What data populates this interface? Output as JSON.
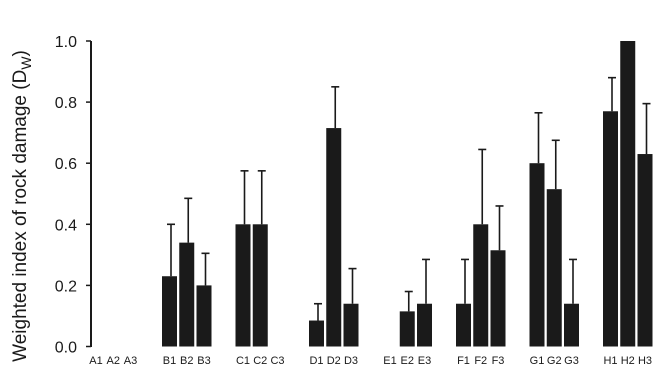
{
  "chart_data": {
    "type": "bar",
    "title": "",
    "xlabel": "",
    "ylabel": "Weighted index of rock damage (D",
    "ylabel_subscript": "W",
    "ylim": [
      0,
      1.0
    ],
    "yticks": [
      "0.0",
      "0.2",
      "0.4",
      "0.6",
      "0.8",
      "1.0"
    ],
    "grid": false,
    "bar_color": "#1a1a1a",
    "groups": [
      {
        "name": "A",
        "categories": [
          "A1",
          "A2",
          "A3"
        ],
        "values": [
          0,
          0,
          0
        ],
        "errors": [
          0,
          0,
          0
        ]
      },
      {
        "name": "B",
        "categories": [
          "B1",
          "B2",
          "B3"
        ],
        "values": [
          0.23,
          0.34,
          0.2
        ],
        "errors": [
          0.17,
          0.145,
          0.105
        ]
      },
      {
        "name": "C",
        "categories": [
          "C1",
          "C2",
          "C3"
        ],
        "values": [
          0.4,
          0.4,
          0
        ],
        "errors": [
          0.175,
          0.175,
          0
        ]
      },
      {
        "name": "D",
        "categories": [
          "D1",
          "D2",
          "D3"
        ],
        "values": [
          0.085,
          0.715,
          0.14
        ],
        "errors": [
          0.055,
          0.135,
          0.115
        ]
      },
      {
        "name": "E",
        "categories": [
          "E1",
          "E2",
          "E3"
        ],
        "values": [
          0,
          0.115,
          0.14
        ],
        "errors": [
          0,
          0.065,
          0.145
        ]
      },
      {
        "name": "F",
        "categories": [
          "F1",
          "F2",
          "F3"
        ],
        "values": [
          0.14,
          0.4,
          0.315
        ],
        "errors": [
          0.145,
          0.245,
          0.145
        ]
      },
      {
        "name": "G",
        "categories": [
          "G1",
          "G2",
          "G3"
        ],
        "values": [
          0.6,
          0.515,
          0.14
        ],
        "errors": [
          0.165,
          0.16,
          0.145
        ]
      },
      {
        "name": "H",
        "categories": [
          "H1",
          "H2",
          "H3"
        ],
        "values": [
          0.77,
          1.0,
          0.63
        ],
        "errors": [
          0.11,
          0,
          0.165
        ]
      }
    ]
  }
}
